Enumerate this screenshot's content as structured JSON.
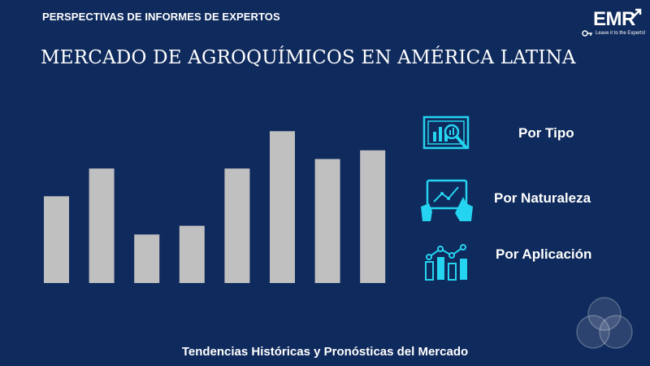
{
  "header": {
    "eyebrow": "PERSPECTIVAS DE INFORMES DE EXPERTOS",
    "title": "MERCADO DE AGROQUÍMICOS EN AMÉRICA LATINA"
  },
  "logo": {
    "text": "EMR",
    "tagline": "Leave it to the Experts!"
  },
  "legend": [
    {
      "label": "Por Tipo",
      "icon": "chart-magnifier-icon"
    },
    {
      "label": "Por Naturaleza",
      "icon": "touch-tablet-chart-icon"
    },
    {
      "label": "Por Aplicación",
      "icon": "bar-line-chart-icon"
    }
  ],
  "footer": "Tendencias Históricas y Pronósticas del Mercado",
  "colors": {
    "background": "#0f2a5c",
    "bar": "#c0c0c0",
    "accent": "#25d4f0"
  },
  "chart_data": {
    "type": "bar",
    "categories": [
      "",
      "",
      "",
      "",
      "",
      "",
      "",
      ""
    ],
    "values": [
      100,
      132,
      56,
      66,
      132,
      175,
      143,
      153
    ],
    "ylim": [
      0,
      180
    ],
    "grid": false,
    "legend": "none"
  }
}
